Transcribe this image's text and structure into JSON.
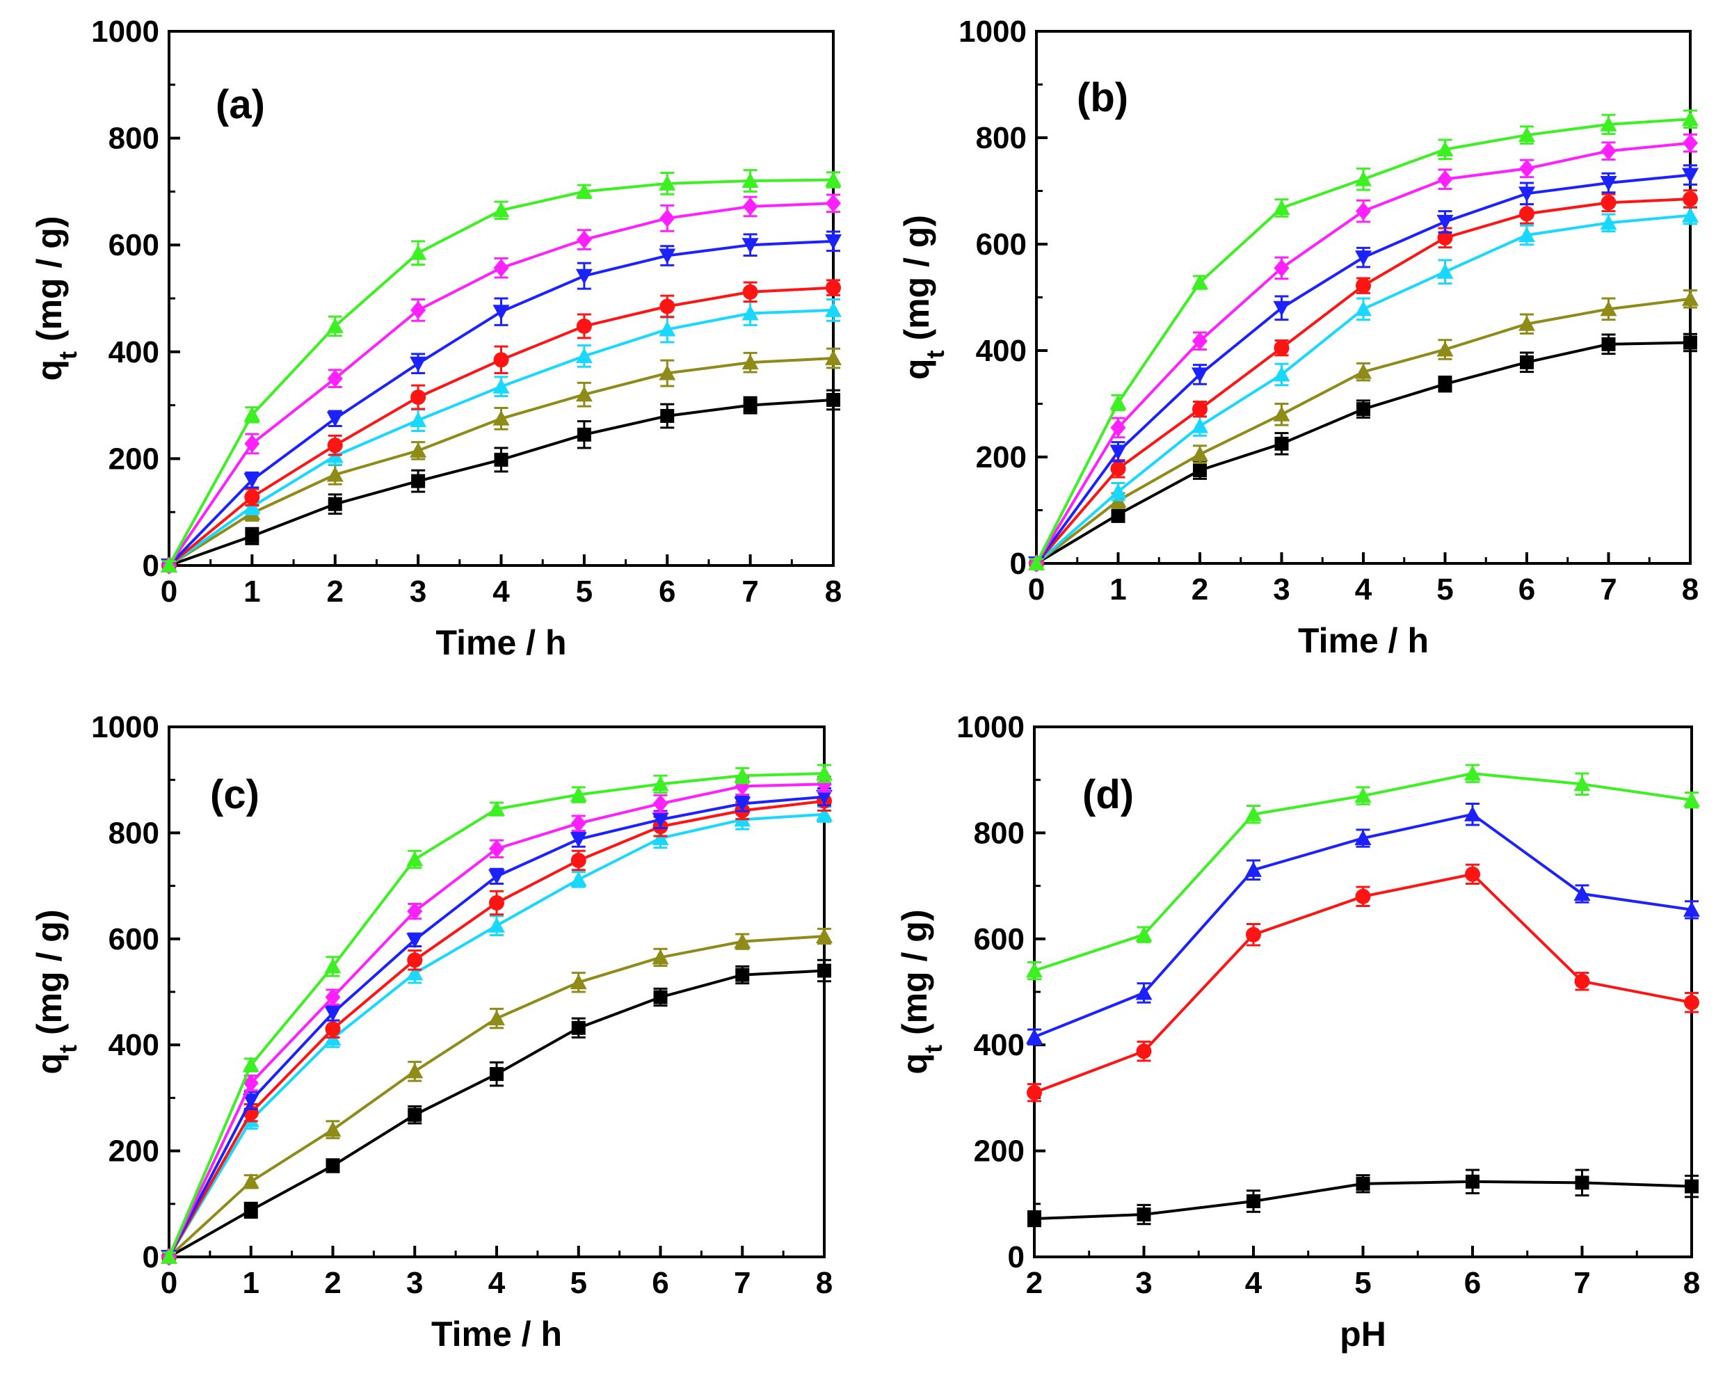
{
  "figure": {
    "colors": {
      "black": "#000000",
      "olive": "#8f8b18",
      "cyan": "#19d8ff",
      "red": "#ff1414",
      "blue": "#1c22ff",
      "magenta": "#ff20ff",
      "green": "#3cf021"
    }
  },
  "chart_data": [
    {
      "id": "a",
      "type": "line",
      "panel_label": "(a)",
      "xlabel": "Time / h",
      "ylabel": "q",
      "ylabel_sub": "t",
      "ylabel_unit": " (mg / g)",
      "xlim": [
        0,
        8
      ],
      "ylim": [
        0,
        1000
      ],
      "xticks": [
        "0",
        "1",
        "2",
        "3",
        "4",
        "5",
        "6",
        "7",
        "8"
      ],
      "yticks": [
        "0",
        "200",
        "400",
        "600",
        "800",
        "1000"
      ],
      "x": [
        0,
        1,
        2,
        3,
        4,
        5,
        6,
        7,
        8
      ],
      "series": [
        {
          "name": "black",
          "color": "#000000",
          "marker": "square",
          "values": [
            0,
            55,
            115,
            158,
            198,
            245,
            280,
            300,
            310
          ],
          "errors": [
            8,
            15,
            18,
            20,
            22,
            25,
            22,
            15,
            18
          ]
        },
        {
          "name": "olive",
          "color": "#8f8b18",
          "marker": "triangle-up",
          "values": [
            0,
            98,
            170,
            215,
            275,
            320,
            360,
            380,
            388
          ],
          "errors": [
            8,
            14,
            18,
            16,
            20,
            22,
            24,
            18,
            18
          ]
        },
        {
          "name": "cyan",
          "color": "#19d8ff",
          "marker": "triangle-up",
          "values": [
            0,
            110,
            205,
            272,
            335,
            392,
            442,
            472,
            478
          ],
          "errors": [
            8,
            14,
            16,
            20,
            18,
            20,
            24,
            22,
            20
          ]
        },
        {
          "name": "red",
          "color": "#ff1414",
          "marker": "circle",
          "values": [
            0,
            128,
            225,
            315,
            385,
            448,
            485,
            512,
            520
          ],
          "errors": [
            8,
            15,
            18,
            22,
            25,
            22,
            20,
            18,
            14
          ]
        },
        {
          "name": "blue",
          "color": "#1c22ff",
          "marker": "triangle-down",
          "values": [
            0,
            160,
            275,
            378,
            475,
            542,
            580,
            600,
            607
          ],
          "errors": [
            8,
            14,
            14,
            18,
            25,
            24,
            18,
            20,
            18
          ]
        },
        {
          "name": "magenta",
          "color": "#ff20ff",
          "marker": "diamond",
          "values": [
            0,
            228,
            350,
            478,
            557,
            610,
            650,
            672,
            678
          ],
          "errors": [
            8,
            18,
            16,
            20,
            18,
            18,
            24,
            18,
            16
          ]
        },
        {
          "name": "green",
          "color": "#3cf021",
          "marker": "triangle-up",
          "values": [
            0,
            282,
            448,
            585,
            665,
            700,
            715,
            720,
            722
          ],
          "errors": [
            8,
            14,
            18,
            22,
            16,
            12,
            20,
            20,
            14
          ]
        }
      ]
    },
    {
      "id": "b",
      "type": "line",
      "panel_label": "(b)",
      "xlabel": "Time / h",
      "ylabel": "q",
      "ylabel_sub": "t",
      "ylabel_unit": " (mg / g)",
      "xlim": [
        0,
        8
      ],
      "ylim": [
        0,
        1000
      ],
      "xticks": [
        "0",
        "1",
        "2",
        "3",
        "4",
        "5",
        "6",
        "7",
        "8"
      ],
      "yticks": [
        "0",
        "200",
        "400",
        "600",
        "800",
        "1000"
      ],
      "x": [
        0,
        1,
        2,
        3,
        4,
        5,
        6,
        7,
        8
      ],
      "series": [
        {
          "name": "black",
          "color": "#000000",
          "marker": "square",
          "values": [
            0,
            92,
            175,
            225,
            290,
            337,
            378,
            412,
            415
          ],
          "errors": [
            8,
            14,
            16,
            20,
            16,
            14,
            18,
            18,
            16
          ]
        },
        {
          "name": "olive",
          "color": "#8f8b18",
          "marker": "triangle-up",
          "values": [
            0,
            118,
            205,
            280,
            360,
            402,
            450,
            478,
            497
          ],
          "errors": [
            8,
            14,
            16,
            20,
            16,
            18,
            18,
            20,
            16
          ]
        },
        {
          "name": "cyan",
          "color": "#19d8ff",
          "marker": "triangle-up",
          "values": [
            0,
            135,
            258,
            355,
            478,
            548,
            617,
            640,
            654
          ],
          "errors": [
            8,
            16,
            18,
            20,
            20,
            22,
            18,
            16,
            16
          ]
        },
        {
          "name": "red",
          "color": "#ff1414",
          "marker": "circle",
          "values": [
            0,
            178,
            290,
            405,
            522,
            612,
            657,
            678,
            685
          ],
          "errors": [
            8,
            16,
            14,
            14,
            14,
            18,
            18,
            16,
            16
          ]
        },
        {
          "name": "blue",
          "color": "#1c22ff",
          "marker": "triangle-down",
          "values": [
            0,
            210,
            355,
            480,
            575,
            642,
            695,
            715,
            730
          ],
          "errors": [
            8,
            18,
            18,
            22,
            18,
            20,
            20,
            18,
            18
          ]
        },
        {
          "name": "magenta",
          "color": "#ff20ff",
          "marker": "diamond",
          "values": [
            0,
            255,
            418,
            555,
            662,
            722,
            742,
            775,
            790
          ],
          "errors": [
            8,
            18,
            16,
            20,
            20,
            18,
            16,
            16,
            16
          ]
        },
        {
          "name": "green",
          "color": "#3cf021",
          "marker": "triangle-up",
          "values": [
            0,
            302,
            528,
            668,
            722,
            778,
            805,
            825,
            835
          ],
          "errors": [
            8,
            14,
            12,
            16,
            20,
            18,
            16,
            18,
            16
          ]
        }
      ]
    },
    {
      "id": "c",
      "type": "line",
      "panel_label": "(c)",
      "xlabel": "Time / h",
      "ylabel": "q",
      "ylabel_sub": "t",
      "ylabel_unit": " (mg / g)",
      "xlim": [
        0,
        8
      ],
      "ylim": [
        0,
        1000
      ],
      "xticks": [
        "0",
        "1",
        "2",
        "3",
        "4",
        "5",
        "6",
        "7",
        "8"
      ],
      "yticks": [
        "0",
        "200",
        "400",
        "600",
        "800",
        "1000"
      ],
      "x": [
        0,
        1,
        2,
        3,
        4,
        5,
        6,
        7,
        8
      ],
      "series": [
        {
          "name": "black",
          "color": "#000000",
          "marker": "square",
          "values": [
            0,
            88,
            172,
            268,
            345,
            432,
            490,
            532,
            540
          ],
          "errors": [
            8,
            14,
            12,
            16,
            22,
            18,
            16,
            16,
            20
          ]
        },
        {
          "name": "olive",
          "color": "#8f8b18",
          "marker": "triangle-up",
          "values": [
            0,
            142,
            240,
            350,
            450,
            518,
            565,
            595,
            605
          ],
          "errors": [
            8,
            12,
            16,
            18,
            18,
            18,
            16,
            14,
            14
          ]
        },
        {
          "name": "cyan",
          "color": "#19d8ff",
          "marker": "triangle-up",
          "values": [
            0,
            258,
            412,
            535,
            625,
            712,
            790,
            825,
            835
          ],
          "errors": [
            8,
            16,
            16,
            18,
            18,
            14,
            18,
            18,
            14
          ]
        },
        {
          "name": "red",
          "color": "#ff1414",
          "marker": "circle",
          "values": [
            0,
            272,
            430,
            560,
            668,
            748,
            812,
            842,
            860
          ],
          "errors": [
            8,
            16,
            16,
            18,
            22,
            18,
            18,
            16,
            18
          ]
        },
        {
          "name": "blue",
          "color": "#1c22ff",
          "marker": "triangle-down",
          "values": [
            0,
            295,
            460,
            598,
            718,
            788,
            825,
            855,
            868
          ],
          "errors": [
            8,
            16,
            14,
            12,
            14,
            14,
            16,
            14,
            16
          ]
        },
        {
          "name": "magenta",
          "color": "#ff20ff",
          "marker": "diamond",
          "values": [
            0,
            328,
            490,
            652,
            770,
            818,
            855,
            888,
            892
          ],
          "errors": [
            8,
            14,
            14,
            14,
            16,
            14,
            16,
            16,
            14
          ]
        },
        {
          "name": "green",
          "color": "#3cf021",
          "marker": "triangle-up",
          "values": [
            0,
            362,
            548,
            750,
            845,
            872,
            892,
            908,
            912
          ],
          "errors": [
            8,
            12,
            18,
            16,
            12,
            14,
            16,
            14,
            16
          ]
        }
      ]
    },
    {
      "id": "d",
      "type": "line",
      "panel_label": "(d)",
      "xlabel": "pH",
      "ylabel": "q",
      "ylabel_sub": "t",
      "ylabel_unit": " (mg / g)",
      "xlim": [
        2,
        8
      ],
      "ylim": [
        0,
        1000
      ],
      "xticks": [
        "2",
        "3",
        "4",
        "5",
        "6",
        "7",
        "8"
      ],
      "yticks": [
        "0",
        "200",
        "400",
        "600",
        "800",
        "1000"
      ],
      "x": [
        2,
        3,
        4,
        5,
        6,
        7,
        8
      ],
      "series": [
        {
          "name": "black",
          "color": "#000000",
          "marker": "square",
          "values": [
            72,
            80,
            105,
            138,
            142,
            140,
            133
          ],
          "errors": [
            14,
            18,
            20,
            16,
            22,
            24,
            20
          ]
        },
        {
          "name": "red",
          "color": "#ff1414",
          "marker": "circle",
          "values": [
            310,
            388,
            608,
            680,
            722,
            520,
            480
          ],
          "errors": [
            16,
            18,
            20,
            18,
            18,
            16,
            18
          ]
        },
        {
          "name": "blue",
          "color": "#1c22ff",
          "marker": "triangle-up",
          "values": [
            415,
            498,
            730,
            790,
            835,
            685,
            655
          ],
          "errors": [
            14,
            18,
            18,
            16,
            20,
            16,
            16
          ]
        },
        {
          "name": "green",
          "color": "#3cf021",
          "marker": "triangle-up",
          "values": [
            540,
            608,
            835,
            870,
            912,
            892,
            862
          ],
          "errors": [
            16,
            14,
            16,
            16,
            16,
            20,
            14
          ]
        }
      ]
    }
  ]
}
